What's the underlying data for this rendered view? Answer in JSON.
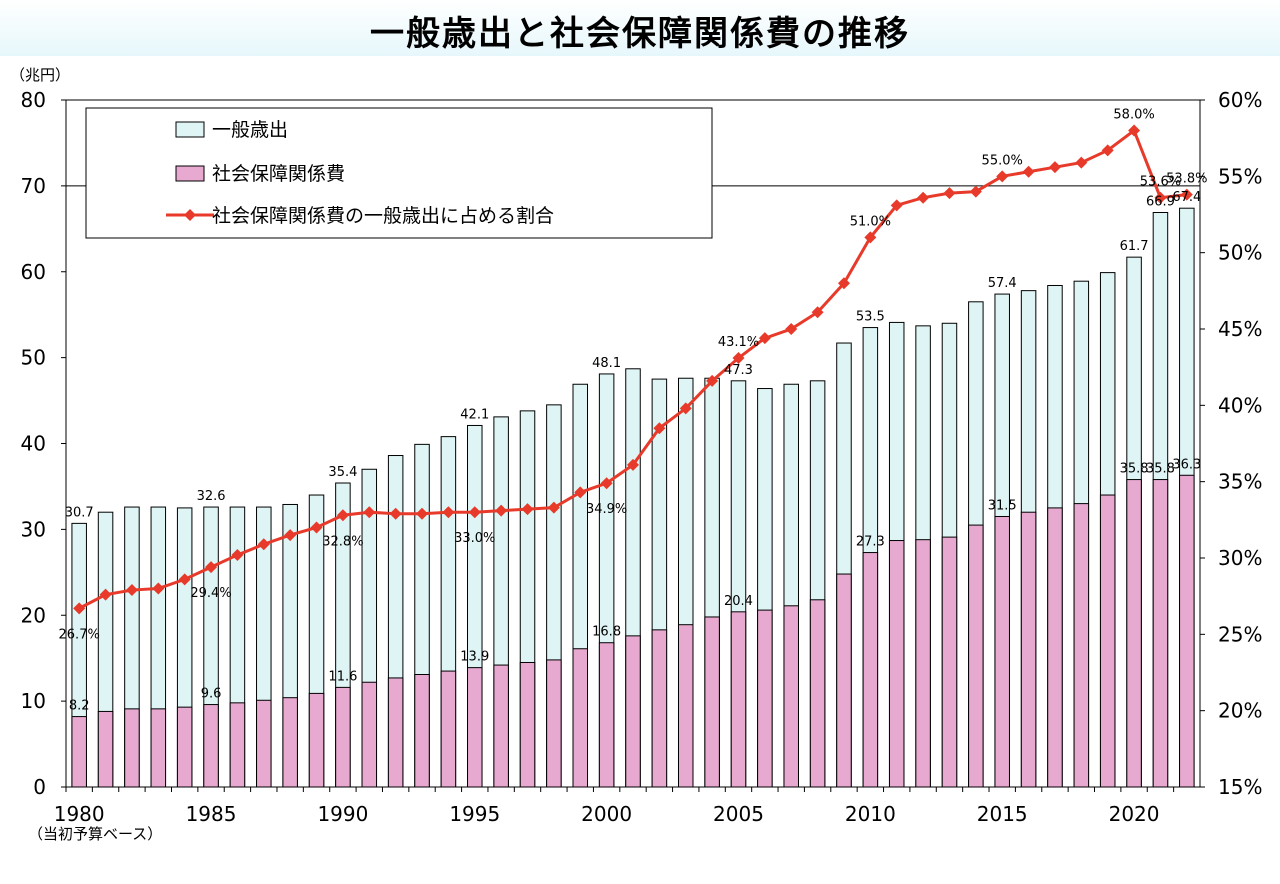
{
  "page": {
    "title": "一般歳出と社会保障関係費の推移",
    "y_unit_label": "（兆円）",
    "note": "（当初予算ベース）"
  },
  "chart_data": {
    "type": "bar",
    "title": "一般歳出と社会保障関係費の推移",
    "x": [
      1980,
      1981,
      1982,
      1983,
      1984,
      1985,
      1986,
      1987,
      1988,
      1989,
      1990,
      1991,
      1992,
      1993,
      1994,
      1995,
      1996,
      1997,
      1998,
      1999,
      2000,
      2001,
      2002,
      2003,
      2004,
      2005,
      2006,
      2007,
      2008,
      2009,
      2010,
      2011,
      2012,
      2013,
      2014,
      2015,
      2016,
      2017,
      2018,
      2019,
      2020,
      2021,
      2022
    ],
    "x_ticks": [
      "1980",
      "1985",
      "1990",
      "1995",
      "2000",
      "2005",
      "2010",
      "2015",
      "2020"
    ],
    "y_left": {
      "range": [
        0,
        80
      ],
      "ticks": [
        "0",
        "10",
        "20",
        "30",
        "40",
        "50",
        "60",
        "70",
        "80"
      ]
    },
    "y_right": {
      "range": [
        15,
        60
      ],
      "ticks": [
        "15%",
        "20%",
        "25%",
        "30%",
        "35%",
        "40%",
        "45%",
        "50%",
        "55%",
        "60%"
      ]
    },
    "gridlines": [
      70,
      80
    ],
    "legend_position": "top-left",
    "series": [
      {
        "name": "一般歳出",
        "type": "bar",
        "color": "#dff5f5",
        "values": [
          30.7,
          32.0,
          32.6,
          32.6,
          32.5,
          32.6,
          32.6,
          32.6,
          32.9,
          34.0,
          35.4,
          37.0,
          38.6,
          39.9,
          40.8,
          42.1,
          43.1,
          43.8,
          44.5,
          46.9,
          48.1,
          48.7,
          47.5,
          47.6,
          47.6,
          47.3,
          46.4,
          46.9,
          47.3,
          51.7,
          53.5,
          54.1,
          53.7,
          54.0,
          56.5,
          57.4,
          57.8,
          58.4,
          58.9,
          59.9,
          61.7,
          66.9,
          67.4
        ],
        "labels": [
          "30.7",
          "",
          "",
          "",
          "",
          "32.6",
          "",
          "",
          "",
          "",
          "35.4",
          "",
          "",
          "",
          "",
          "42.1",
          "",
          "",
          "",
          "",
          "48.1",
          "",
          "",
          "",
          "",
          "47.3",
          "",
          "",
          "",
          "",
          "53.5",
          "",
          "",
          "",
          "",
          "57.4",
          "",
          "",
          "",
          "",
          "61.7",
          "66.9",
          "67.4"
        ]
      },
      {
        "name": "社会保障関係費",
        "type": "bar",
        "color": "#e7a9cf",
        "values": [
          8.2,
          8.8,
          9.1,
          9.1,
          9.3,
          9.6,
          9.8,
          10.1,
          10.4,
          10.9,
          11.6,
          12.2,
          12.7,
          13.1,
          13.5,
          13.9,
          14.2,
          14.5,
          14.8,
          16.1,
          16.8,
          17.6,
          18.3,
          18.9,
          19.8,
          20.4,
          20.6,
          21.1,
          21.8,
          24.8,
          27.3,
          28.7,
          28.8,
          29.1,
          30.5,
          31.5,
          32.0,
          32.5,
          33.0,
          34.0,
          35.8,
          35.8,
          36.3
        ],
        "labels": [
          "8.2",
          "",
          "",
          "",
          "",
          "9.6",
          "",
          "",
          "",
          "",
          "11.6",
          "",
          "",
          "",
          "",
          "13.9",
          "",
          "",
          "",
          "",
          "16.8",
          "",
          "",
          "",
          "",
          "20.4",
          "",
          "",
          "",
          "",
          "27.3",
          "",
          "",
          "",
          "",
          "31.5",
          "",
          "",
          "",
          "",
          "35.8",
          "35.8",
          "36.3"
        ]
      },
      {
        "name": "社会保障関係費の一般歳出に占める割合",
        "type": "line",
        "axis": "right",
        "color": "#e83a2a",
        "values": [
          26.7,
          27.6,
          27.9,
          28.0,
          28.6,
          29.4,
          30.2,
          30.9,
          31.5,
          32.0,
          32.8,
          33.0,
          32.9,
          32.9,
          33.0,
          33.0,
          33.1,
          33.2,
          33.3,
          34.3,
          34.9,
          36.1,
          38.5,
          39.8,
          41.6,
          43.1,
          44.4,
          45.0,
          46.1,
          48.0,
          51.0,
          53.1,
          53.6,
          53.9,
          54.0,
          55.0,
          55.3,
          55.6,
          55.9,
          56.7,
          58.0,
          53.6,
          53.8
        ],
        "labels": [
          "26.7%",
          "",
          "",
          "",
          "",
          "29.4%",
          "",
          "",
          "",
          "",
          "32.8%",
          "",
          "",
          "",
          "",
          "33.0%",
          "",
          "",
          "",
          "",
          "34.9%",
          "",
          "",
          "",
          "",
          "43.1%",
          "",
          "",
          "",
          "",
          "51.0%",
          "",
          "",
          "",
          "",
          "55.0%",
          "",
          "",
          "",
          "",
          "58.0%",
          "53.6%",
          "53.8%"
        ]
      }
    ]
  }
}
